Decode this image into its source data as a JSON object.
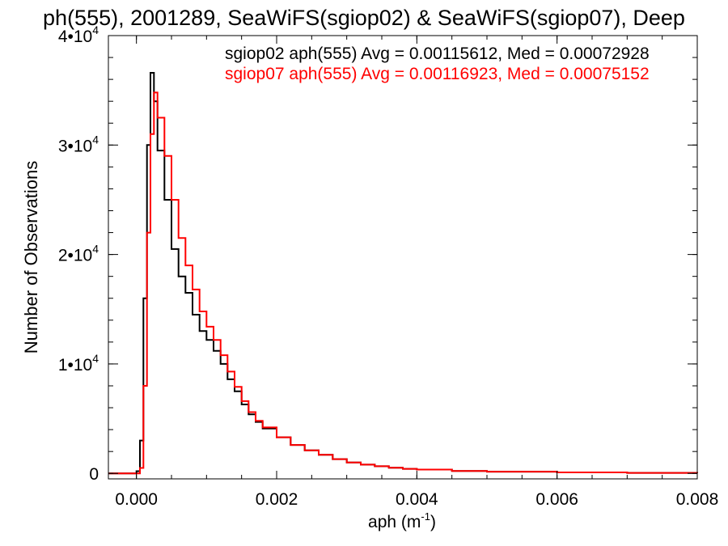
{
  "chart_data": {
    "type": "line",
    "title": "ph(555), 2001289, SeaWiFS(sgiop02) & SeaWiFS(sgiop07), Deep",
    "xlabel": "aph (m",
    "xlabel_sup": "-1",
    "xlabel_close": ")",
    "ylabel": "Number of Observations",
    "xlim": [
      -0.0004,
      0.008
    ],
    "ylim": [
      -500,
      40000
    ],
    "x_ticks": [
      {
        "value": 0.0,
        "label": "0.000"
      },
      {
        "value": 0.002,
        "label": "0.002"
      },
      {
        "value": 0.004,
        "label": "0.004"
      },
      {
        "value": 0.006,
        "label": "0.006"
      },
      {
        "value": 0.008,
        "label": "0.008"
      }
    ],
    "y_ticks": [
      {
        "value": 0,
        "label": "0",
        "exp": ""
      },
      {
        "value": 10000,
        "label": "1•10",
        "exp": "4"
      },
      {
        "value": 20000,
        "label": "2•10",
        "exp": "4"
      },
      {
        "value": 30000,
        "label": "3•10",
        "exp": "4"
      },
      {
        "value": 40000,
        "label": "4•10",
        "exp": "4"
      }
    ],
    "grid": false,
    "legend_placement": "top-right",
    "series": [
      {
        "name": "sgiop02 aph(555) Avg = 0.00115612, Med = 0.00072928",
        "color": "#000000",
        "x": [
          -0.0004,
          0.0,
          5e-05,
          0.0001,
          0.00015,
          0.0002,
          0.00025,
          0.0003,
          0.0004,
          0.0005,
          0.0006,
          0.0007,
          0.0008,
          0.0009,
          0.001,
          0.0011,
          0.0012,
          0.0013,
          0.0014,
          0.0015,
          0.0016,
          0.0017,
          0.0018,
          0.002,
          0.0022,
          0.0024,
          0.0026,
          0.0028,
          0.003,
          0.0032,
          0.0034,
          0.0036,
          0.0038,
          0.004,
          0.0045,
          0.005,
          0.006,
          0.007,
          0.008
        ],
        "y": [
          0,
          200,
          3000,
          16000,
          30000,
          36600,
          34000,
          29500,
          25000,
          20500,
          18000,
          16500,
          14500,
          13000,
          12200,
          11200,
          10000,
          8600,
          7500,
          6300,
          5400,
          4700,
          4100,
          3300,
          2600,
          2100,
          1700,
          1300,
          1000,
          800,
          650,
          520,
          420,
          350,
          220,
          160,
          90,
          50,
          30
        ]
      },
      {
        "name": "sgiop07 aph(555) Avg = 0.00116923, Med = 0.00075152",
        "color": "#ff0000",
        "x": [
          -0.0004,
          0.0,
          5e-05,
          0.0001,
          0.00015,
          0.0002,
          0.00025,
          0.0003,
          0.0004,
          0.0005,
          0.0006,
          0.0007,
          0.0008,
          0.0009,
          0.001,
          0.0011,
          0.0012,
          0.0013,
          0.0014,
          0.0015,
          0.0016,
          0.0017,
          0.0018,
          0.002,
          0.0022,
          0.0024,
          0.0026,
          0.0028,
          0.003,
          0.0032,
          0.0034,
          0.0036,
          0.0038,
          0.004,
          0.0045,
          0.005,
          0.006,
          0.007,
          0.008
        ],
        "y": [
          0,
          0,
          500,
          8000,
          22000,
          31000,
          34800,
          32500,
          29000,
          25000,
          21500,
          19000,
          16800,
          14800,
          13400,
          12200,
          10800,
          9300,
          7900,
          6600,
          5600,
          4800,
          4200,
          3300,
          2600,
          2100,
          1700,
          1300,
          1000,
          800,
          650,
          520,
          420,
          350,
          220,
          160,
          90,
          50,
          30
        ]
      }
    ]
  }
}
